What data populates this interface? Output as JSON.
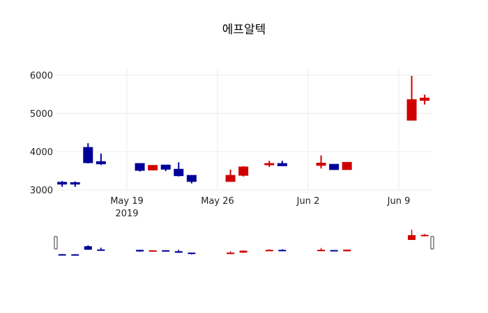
{
  "chart_data": {
    "type": "candlestick",
    "title": "에프알텍",
    "xlabel": "",
    "ylabel": "",
    "ylim": [
      2800,
      6200
    ],
    "yticks": [
      3000,
      4000,
      5000,
      6000
    ],
    "xticks": [
      {
        "date": "2019-05-19",
        "label": "May 19",
        "sublabel": "2019"
      },
      {
        "date": "2019-05-26",
        "label": "May 26",
        "sublabel": ""
      },
      {
        "date": "2019-06-02",
        "label": "Jun 2",
        "sublabel": ""
      },
      {
        "date": "2019-06-09",
        "label": "Jun 9",
        "sublabel": ""
      }
    ],
    "xrange": [
      "2019-05-13T12:00",
      "2019-06-11T12:00"
    ],
    "grid": true,
    "rangeslider": true,
    "colors": {
      "increasing": "#d00000",
      "decreasing": "#000099",
      "grid": "#ebebeb"
    },
    "x": [
      "2019-05-14",
      "2019-05-15",
      "2019-05-16",
      "2019-05-17",
      "2019-05-20",
      "2019-05-21",
      "2019-05-22",
      "2019-05-23",
      "2019-05-24",
      "2019-05-27",
      "2019-05-28",
      "2019-05-30",
      "2019-05-31",
      "2019-06-03",
      "2019-06-04",
      "2019-06-05",
      "2019-06-10",
      "2019-06-11"
    ],
    "open": [
      3200,
      3190,
      4110,
      3740,
      3690,
      3520,
      3650,
      3540,
      3380,
      3220,
      3380,
      3660,
      3690,
      3640,
      3670,
      3530,
      4820,
      5340
    ],
    "high": [
      3230,
      3220,
      4220,
      3950,
      3690,
      3650,
      3650,
      3720,
      3380,
      3530,
      3620,
      3760,
      3760,
      3900,
      3670,
      3720,
      5980,
      5490
    ],
    "low": [
      3080,
      3080,
      3690,
      3650,
      3480,
      3510,
      3490,
      3350,
      3170,
      3210,
      3350,
      3600,
      3630,
      3560,
      3520,
      3530,
      4820,
      5230
    ],
    "close": [
      3150,
      3150,
      3710,
      3680,
      3510,
      3640,
      3540,
      3370,
      3220,
      3380,
      3600,
      3690,
      3630,
      3700,
      3530,
      3720,
      5360,
      5400
    ]
  }
}
